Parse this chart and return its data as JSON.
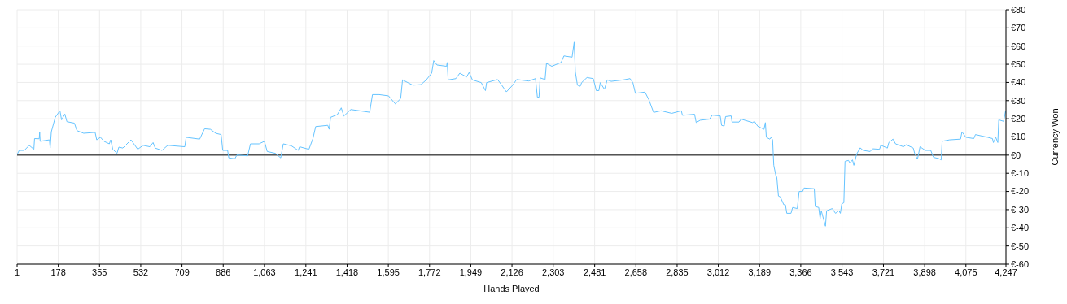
{
  "chart_data": {
    "type": "line",
    "xlabel": "Hands Played",
    "ylabel": "Currency Won",
    "grid": true,
    "legend": false,
    "marker": "none",
    "line_style": "solid",
    "xlim": [
      1,
      4247
    ],
    "xticks": [
      1,
      178,
      355,
      532,
      709,
      886,
      {
        "value": 1063,
        "label": "1,063"
      },
      {
        "value": 1241,
        "label": "1,241"
      },
      {
        "value": 1418,
        "label": "1,418"
      },
      {
        "value": 1595,
        "label": "1,595"
      },
      {
        "value": 1772,
        "label": "1,772"
      },
      {
        "value": 1949,
        "label": "1,949"
      },
      {
        "value": 2126,
        "label": "2,126"
      },
      {
        "value": 2303,
        "label": "2,303"
      },
      {
        "value": 2481,
        "label": "2,481"
      },
      {
        "value": 2658,
        "label": "2,658"
      },
      {
        "value": 2835,
        "label": "2,835"
      },
      {
        "value": 3012,
        "label": "3,012"
      },
      {
        "value": 3189,
        "label": "3,189"
      },
      {
        "value": 3366,
        "label": "3,366"
      },
      {
        "value": 3543,
        "label": "3,543"
      },
      {
        "value": 3721,
        "label": "3,721"
      },
      {
        "value": 3898,
        "label": "3,898"
      },
      {
        "value": 4075,
        "label": "4,075"
      },
      {
        "value": 4247,
        "label": "4,247"
      }
    ],
    "ylim": [
      -60,
      80
    ],
    "yticks": [
      {
        "value": -60,
        "label": "€-60"
      },
      {
        "value": -50,
        "label": "€-50"
      },
      {
        "value": -40,
        "label": "€-40"
      },
      {
        "value": -30,
        "label": "€-30"
      },
      {
        "value": -20,
        "label": "€-20"
      },
      {
        "value": -10,
        "label": "€-10"
      },
      {
        "value": 0,
        "label": "€0"
      },
      {
        "value": 10,
        "label": "€10"
      },
      {
        "value": 20,
        "label": "€20"
      },
      {
        "value": 30,
        "label": "€30"
      },
      {
        "value": 40,
        "label": "€40"
      },
      {
        "value": 50,
        "label": "€50"
      },
      {
        "value": 60,
        "label": "€60"
      },
      {
        "value": 70,
        "label": "€70"
      },
      {
        "value": 80,
        "label": "€80"
      }
    ],
    "ref_lines": [
      {
        "axis": "y",
        "value": 0,
        "color": "#000000"
      }
    ],
    "series": [
      {
        "color": "#66c4ff",
        "x": [
          1,
          10,
          32,
          53,
          73,
          76,
          96,
          98,
          100,
          140,
          143,
          148,
          165,
          185,
          192,
          206,
          215,
          247,
          258,
          287,
          336,
          343,
          359,
          374,
          397,
          403,
          412,
          430,
          438,
          455,
          490,
          519,
          542,
          571,
          585,
          594,
          623,
          648,
          721,
          727,
          785,
          806,
          831,
          854,
          877,
          884,
          905,
          910,
          936,
          945,
          991,
          1003,
          1040,
          1063,
          1075,
          1110,
          1133,
          1144,
          1179,
          1208,
          1214,
          1254,
          1271,
          1283,
          1335,
          1341,
          1347,
          1376,
          1393,
          1404,
          1434,
          1515,
          1527,
          1556,
          1596,
          1625,
          1648,
          1656,
          1700,
          1735,
          1758,
          1781,
          1790,
          1804,
          1845,
          1848,
          1852,
          1885,
          1902,
          1931,
          1942,
          1956,
          1994,
          2012,
          2017,
          2064,
          2082,
          2102,
          2129,
          2146,
          2198,
          2227,
          2235,
          2242,
          2247,
          2268,
          2274,
          2297,
          2337,
          2349,
          2384,
          2393,
          2398,
          2407,
          2419,
          2425,
          2448,
          2475,
          2488,
          2499,
          2505,
          2523,
          2535,
          2552,
          2604,
          2633,
          2645,
          2656,
          2697,
          2714,
          2734,
          2766,
          2812,
          2853,
          2858,
          2910,
          2917,
          2934,
          2974,
          2986,
          3020,
          3026,
          3037,
          3043,
          3067,
          3071,
          3101,
          3110,
          3159,
          3167,
          3181,
          3208,
          3214,
          3218,
          3233,
          3239,
          3245,
          3250,
          3259,
          3263,
          3270,
          3278,
          3293,
          3300,
          3306,
          3324,
          3331,
          3351,
          3359,
          3374,
          3380,
          3424,
          3428,
          3443,
          3449,
          3454,
          3472,
          3477,
          3501,
          3515,
          3530,
          3536,
          3542,
          3551,
          3556,
          3571,
          3577,
          3588,
          3594,
          3606,
          3621,
          3634,
          3664,
          3675,
          3704,
          3710,
          3738,
          3744,
          3762,
          3773,
          3807,
          3819,
          3849,
          3855,
          3867,
          3878,
          3901,
          3924,
          3936,
          3959,
          3969,
          3973,
          4005,
          4052,
          4058,
          4075,
          4109,
          4116,
          4168,
          4189,
          4193,
          4203,
          4212,
          4216,
          4237,
          4245,
          4247
        ],
        "values": [
          0.3,
          2.6,
          2.6,
          5.4,
          3.2,
          9.1,
          9,
          12.5,
          7.6,
          8.4,
          4,
          12.8,
          20.8,
          24.5,
          19.4,
          22.6,
          18.4,
          17.6,
          13.5,
          12,
          12.5,
          8.4,
          9.8,
          7.6,
          6.2,
          8.4,
          3.2,
          1,
          4.4,
          3.9,
          8.4,
          3.2,
          5.4,
          4.6,
          6.9,
          3.9,
          2.6,
          5.4,
          4.6,
          9.8,
          8.8,
          14.5,
          14.2,
          12,
          11.3,
          2.6,
          2.6,
          -1.5,
          -2,
          0.1,
          -0.4,
          6.2,
          6.2,
          7.6,
          2,
          1,
          -1.5,
          6.2,
          5.1,
          2.6,
          4.6,
          3.2,
          9,
          15.7,
          16.4,
          14.2,
          20.8,
          22.3,
          26,
          21.5,
          25.1,
          23.6,
          33.3,
          33.3,
          32.6,
          28.2,
          31.1,
          41.4,
          38.5,
          38.8,
          41.4,
          45.1,
          52,
          49.6,
          48.9,
          51,
          41.4,
          42.1,
          45.1,
          43,
          45.5,
          41.4,
          39.9,
          35.5,
          39.9,
          41.6,
          38.5,
          34.8,
          38.5,
          41.6,
          40.8,
          42.1,
          31.9,
          31.9,
          42.5,
          41.6,
          50.5,
          48.9,
          51,
          54.6,
          53.9,
          62.2,
          45.8,
          38.5,
          37.9,
          39.9,
          42.7,
          42.1,
          35.5,
          35.5,
          39.9,
          36.2,
          41.4,
          40.6,
          41.4,
          42.1,
          39.9,
          34,
          34.7,
          30.4,
          23.5,
          24.4,
          23,
          24.4,
          21.9,
          22.5,
          17.9,
          19.2,
          19.8,
          22,
          21.6,
          16.4,
          16,
          21.2,
          21.6,
          18.2,
          18.2,
          19.8,
          17.9,
          18.6,
          15.9,
          14.2,
          17.9,
          9.8,
          8.8,
          9.8,
          8.4,
          -5.6,
          -11.2,
          -12.2,
          -22.5,
          -23,
          -27.3,
          -27.3,
          -32,
          -32,
          -28.8,
          -29.4,
          -20,
          -20,
          -18.1,
          -18.5,
          -28.3,
          -28.8,
          -34.9,
          -30.6,
          -39.1,
          -30.6,
          -29.4,
          -32,
          -30.6,
          -32,
          -26.9,
          -26.2,
          -3.4,
          -2.9,
          -4.3,
          -2.6,
          -5.6,
          0.6,
          4,
          2.6,
          2,
          3.5,
          3.2,
          5.4,
          3.9,
          6.9,
          8.8,
          6.2,
          4.6,
          5.7,
          3.9,
          1,
          -2.3,
          4.6,
          2.6,
          2.6,
          -1.2,
          -1.9,
          -2.6,
          7.6,
          8.4,
          8.8,
          12.8,
          9.8,
          9.1,
          11.3,
          9.8,
          9.1,
          6.9,
          9.8,
          6.9,
          19.4,
          18.6,
          24.1,
          23
        ]
      }
    ]
  }
}
